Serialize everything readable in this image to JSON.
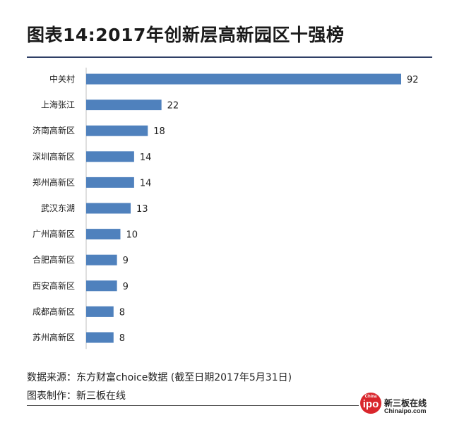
{
  "title": "图表14:2017年创新层高新园区十强榜",
  "chart_data": {
    "type": "bar",
    "orientation": "horizontal",
    "categories": [
      "中关村",
      "上海张江",
      "济南高新区",
      "深圳高新区",
      "郑州高新区",
      "武汉东湖",
      "广州高新区",
      "合肥高新区",
      "西安高新区",
      "成都高新区",
      "苏州高新区"
    ],
    "values": [
      92,
      22,
      18,
      14,
      14,
      13,
      10,
      9,
      9,
      8,
      8
    ],
    "bar_color": "#4f81bd",
    "xlim": [
      0,
      92
    ],
    "data_labels": true,
    "grid": false
  },
  "footer": {
    "source": "数据来源：东方财富choice数据 (截至日期2017年5月31日)",
    "maker": "图表制作：新三板在线"
  },
  "logo": {
    "tiny_text": "China",
    "big_text": "ipo",
    "name": "新三板在线",
    "url": "Chinaipo.com",
    "color": "#d9262c"
  }
}
